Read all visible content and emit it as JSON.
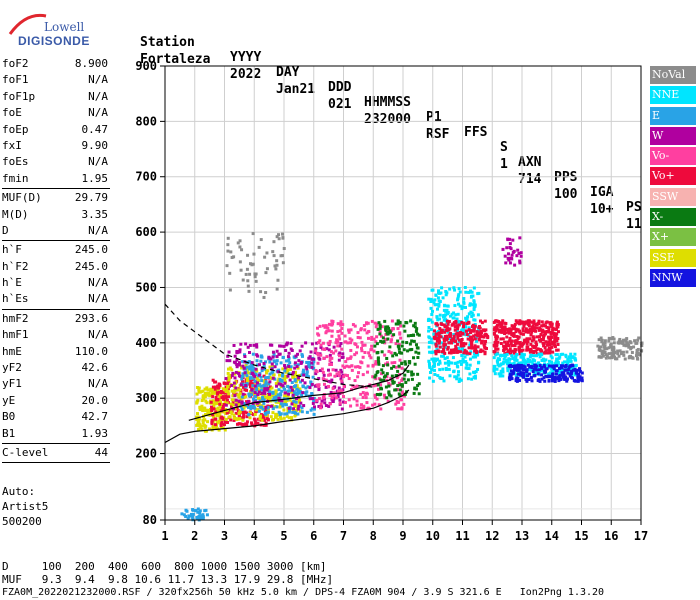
{
  "logo": {
    "line1": "Lowell",
    "line2": "DIGISONDE"
  },
  "header": {
    "labels": [
      "Station",
      "YYYY",
      "DAY",
      "DDD",
      "HHMMSS",
      "P1",
      "FFS",
      "S",
      "AXN",
      "PPS",
      "IGA",
      "PS"
    ],
    "values": [
      "Fortaleza",
      "2022",
      "Jan21",
      "021",
      "232000",
      "RSF",
      "",
      "1",
      "714",
      "100",
      "10+",
      "11"
    ]
  },
  "params": [
    {
      "k": "foF2",
      "v": "8.900"
    },
    {
      "k": "foF1",
      "v": "N/A"
    },
    {
      "k": "foF1p",
      "v": "N/A"
    },
    {
      "k": "foE",
      "v": "N/A"
    },
    {
      "k": "foEp",
      "v": "0.47"
    },
    {
      "k": "fxI",
      "v": "9.90"
    },
    {
      "k": "foEs",
      "v": "N/A"
    },
    {
      "k": "fmin",
      "v": "1.95"
    },
    {
      "sep": true
    },
    {
      "k": "MUF(D)",
      "v": "29.79"
    },
    {
      "k": "M(D)",
      "v": "3.35"
    },
    {
      "k": "D",
      "v": "N/A"
    },
    {
      "sep": true
    },
    {
      "k": "h`F",
      "v": "245.0"
    },
    {
      "k": "h`F2",
      "v": "245.0"
    },
    {
      "k": "h`E",
      "v": "N/A"
    },
    {
      "k": "h`Es",
      "v": "N/A"
    },
    {
      "sep": true
    },
    {
      "k": "hmF2",
      "v": "293.6"
    },
    {
      "k": "hmF1",
      "v": "N/A"
    },
    {
      "k": "hmE",
      "v": "110.0"
    },
    {
      "k": "yF2",
      "v": "42.6"
    },
    {
      "k": "yF1",
      "v": "N/A"
    },
    {
      "k": "yE",
      "v": "20.0"
    },
    {
      "k": "B0",
      "v": "42.7"
    },
    {
      "k": "B1",
      "v": "1.93"
    },
    {
      "sep": true
    },
    {
      "k": "C-level",
      "v": "44"
    },
    {
      "sep": true
    }
  ],
  "auto": [
    "Auto:",
    "Artist5",
    "500200"
  ],
  "bottom": {
    "d_line": "D     100  200  400  600  800 1000 1500 3000 [km]",
    "muf_line": "MUF   9.3  9.4  9.8 10.6 11.7 13.3 17.9 29.8 [MHz]",
    "footer": "FZA0M_2022021232000.RSF / 320fx256h 50 kHz 5.0 km / DPS-4 FZA0M 904 / 3.9 S 321.6 E   Ion2Png 1.3.20"
  },
  "legend": [
    {
      "label": "NoVal",
      "color": "#8c8c8c"
    },
    {
      "label": "NNE",
      "color": "#00e5ff"
    },
    {
      "label": "E",
      "color": "#29a3e6"
    },
    {
      "label": "W",
      "color": "#b0009f"
    },
    {
      "label": "Vo-",
      "color": "#ff3fa0"
    },
    {
      "label": "Vo+",
      "color": "#ee0a3c"
    },
    {
      "label": "SSW",
      "color": "#f7b2b0"
    },
    {
      "label": "X-",
      "color": "#0a7a12"
    },
    {
      "label": "X+",
      "color": "#7bc043"
    },
    {
      "label": "SSE",
      "color": "#dede00"
    },
    {
      "label": "NNW",
      "color": "#1414e0"
    }
  ],
  "chart_data": {
    "type": "scatter",
    "title": "",
    "xlabel": "",
    "ylabel": "",
    "xlim": [
      1,
      17
    ],
    "ylim": [
      80,
      900
    ],
    "xticks": [
      1,
      2,
      3,
      4,
      5,
      6,
      7,
      8,
      9,
      10,
      11,
      12,
      13,
      14,
      15,
      16,
      17
    ],
    "yticks": [
      80,
      200,
      300,
      400,
      500,
      600,
      700,
      800,
      900
    ],
    "grid": true,
    "legend_position": "right",
    "clusters": [
      {
        "x": [
          1.5,
          2.4
        ],
        "y": [
          80,
          100
        ],
        "color": "#29a3e6",
        "n": 40
      },
      {
        "x": [
          2.0,
          3.0
        ],
        "y": [
          240,
          320
        ],
        "color": "#dede00",
        "n": 180
      },
      {
        "x": [
          2.5,
          4.5
        ],
        "y": [
          250,
          340
        ],
        "color": "#ee0a3c",
        "n": 240
      },
      {
        "x": [
          3.0,
          5.5
        ],
        "y": [
          260,
          360
        ],
        "color": "#dede00",
        "n": 280
      },
      {
        "x": [
          3.5,
          6.0
        ],
        "y": [
          270,
          380
        ],
        "color": "#29a3e6",
        "n": 260
      },
      {
        "x": [
          3.0,
          7.0
        ],
        "y": [
          280,
          400
        ],
        "color": "#b0009f",
        "n": 260
      },
      {
        "x": [
          3.0,
          5.0
        ],
        "y": [
          480,
          600
        ],
        "color": "#8c8c8c",
        "n": 60
      },
      {
        "x": [
          6.0,
          9.0
        ],
        "y": [
          280,
          440
        ],
        "color": "#ff3fa0",
        "n": 300
      },
      {
        "x": [
          8.0,
          9.5
        ],
        "y": [
          300,
          440
        ],
        "color": "#0a7a12",
        "n": 160
      },
      {
        "x": [
          9.8,
          11.5
        ],
        "y": [
          330,
          500
        ],
        "color": "#00e5ff",
        "n": 320
      },
      {
        "x": [
          10.0,
          11.8
        ],
        "y": [
          380,
          440
        ],
        "color": "#ee0a3c",
        "n": 220
      },
      {
        "x": [
          12.0,
          14.2
        ],
        "y": [
          380,
          440
        ],
        "color": "#ee0a3c",
        "n": 360
      },
      {
        "x": [
          12.0,
          14.8
        ],
        "y": [
          340,
          380
        ],
        "color": "#00e5ff",
        "n": 260
      },
      {
        "x": [
          12.5,
          15.0
        ],
        "y": [
          330,
          360
        ],
        "color": "#1414e0",
        "n": 200
      },
      {
        "x": [
          12.3,
          13.0
        ],
        "y": [
          540,
          590
        ],
        "color": "#b0009f",
        "n": 30
      },
      {
        "x": [
          15.5,
          17.0
        ],
        "y": [
          370,
          410
        ],
        "color": "#8c8c8c",
        "n": 120
      }
    ],
    "curves": [
      {
        "name": "",
        "style": "solid",
        "x": [
          1,
          1.5,
          2,
          3,
          4,
          5,
          6,
          7,
          8,
          8.5,
          9,
          9.2
        ],
        "y": [
          220,
          235,
          240,
          245,
          250,
          258,
          265,
          272,
          282,
          292,
          305,
          315
        ]
      },
      {
        "name": "",
        "style": "solid",
        "x": [
          1.8,
          3,
          4,
          5,
          6,
          7,
          7.5,
          8,
          8.5,
          9,
          9.2
        ],
        "y": [
          260,
          278,
          292,
          298,
          305,
          310,
          318,
          325,
          332,
          345,
          360
        ]
      },
      {
        "name": "",
        "style": "dashed",
        "x": [
          1,
          1.5,
          2,
          2.5,
          3,
          4,
          5,
          6,
          7,
          8
        ],
        "y": [
          470,
          440,
          420,
          400,
          380,
          360,
          345,
          335,
          325,
          320
        ]
      }
    ]
  }
}
